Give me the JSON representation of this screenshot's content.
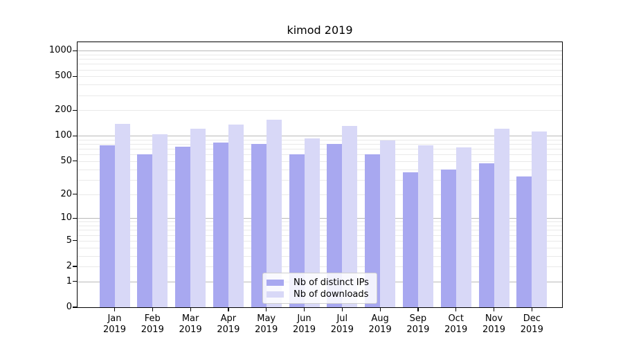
{
  "chart_data": {
    "type": "bar",
    "title": "kimod 2019",
    "xlabel": "",
    "ylabel": "",
    "categories": [
      "Jan",
      "Feb",
      "Mar",
      "Apr",
      "May",
      "Jun",
      "Jul",
      "Aug",
      "Sep",
      "Oct",
      "Nov",
      "Dec"
    ],
    "tick_year": "2019",
    "series": [
      {
        "name": "Nb of distinct IPs",
        "color": "#a8a8f0",
        "values": [
          78,
          61,
          75,
          84,
          81,
          60,
          80,
          60,
          37,
          40,
          47,
          33
        ]
      },
      {
        "name": "Nb of downloads",
        "color": "#d8d8f7",
        "values": [
          138,
          104,
          122,
          137,
          156,
          93,
          131,
          88,
          77,
          73,
          122,
          113
        ]
      }
    ],
    "y_axis": {
      "scale": "log10(1+y)",
      "tick_labels": [
        0,
        1,
        2,
        5,
        10,
        20,
        50,
        100,
        200,
        500,
        1000
      ],
      "major_gridlines": [
        1,
        10,
        100,
        1000
      ],
      "ylim": [
        0,
        1240
      ],
      "grid": true
    },
    "legend": {
      "location": "inside lower-center of plot",
      "items": [
        "Nb of distinct IPs",
        "Nb of downloads"
      ]
    },
    "colors": {
      "grid_major": "#b8b8b8",
      "grid_minor": "#e9e9e9",
      "axis": "#000000",
      "background": "#ffffff"
    }
  }
}
